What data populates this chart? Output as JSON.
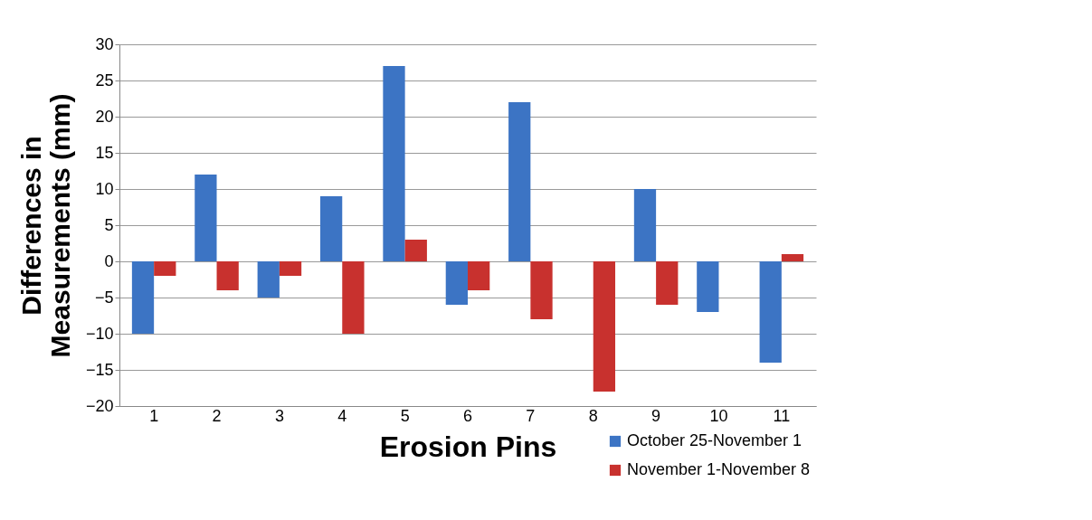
{
  "chart_data": {
    "type": "bar",
    "xlabel": "Erosion Pins",
    "ylabel": "Differences in Measurements (mm)",
    "categories": [
      "1",
      "2",
      "3",
      "4",
      "5",
      "6",
      "7",
      "8",
      "9",
      "10",
      "11"
    ],
    "series": [
      {
        "name": "October 25-November 1",
        "color": "#3c74c4",
        "values": [
          -10,
          12,
          -5,
          9,
          27,
          -6,
          22,
          0,
          10,
          -7,
          -14
        ]
      },
      {
        "name": "November 1-November 8",
        "color": "#c8312e",
        "values": [
          -2,
          -4,
          -2,
          -10,
          3,
          -4,
          -8,
          -18,
          -6,
          0,
          1
        ]
      }
    ],
    "ylim": [
      -20,
      30
    ],
    "yticks": [
      -20,
      -15,
      -10,
      -5,
      0,
      5,
      10,
      15,
      20,
      25,
      30
    ],
    "grid": "y",
    "legend": "bottom right"
  }
}
